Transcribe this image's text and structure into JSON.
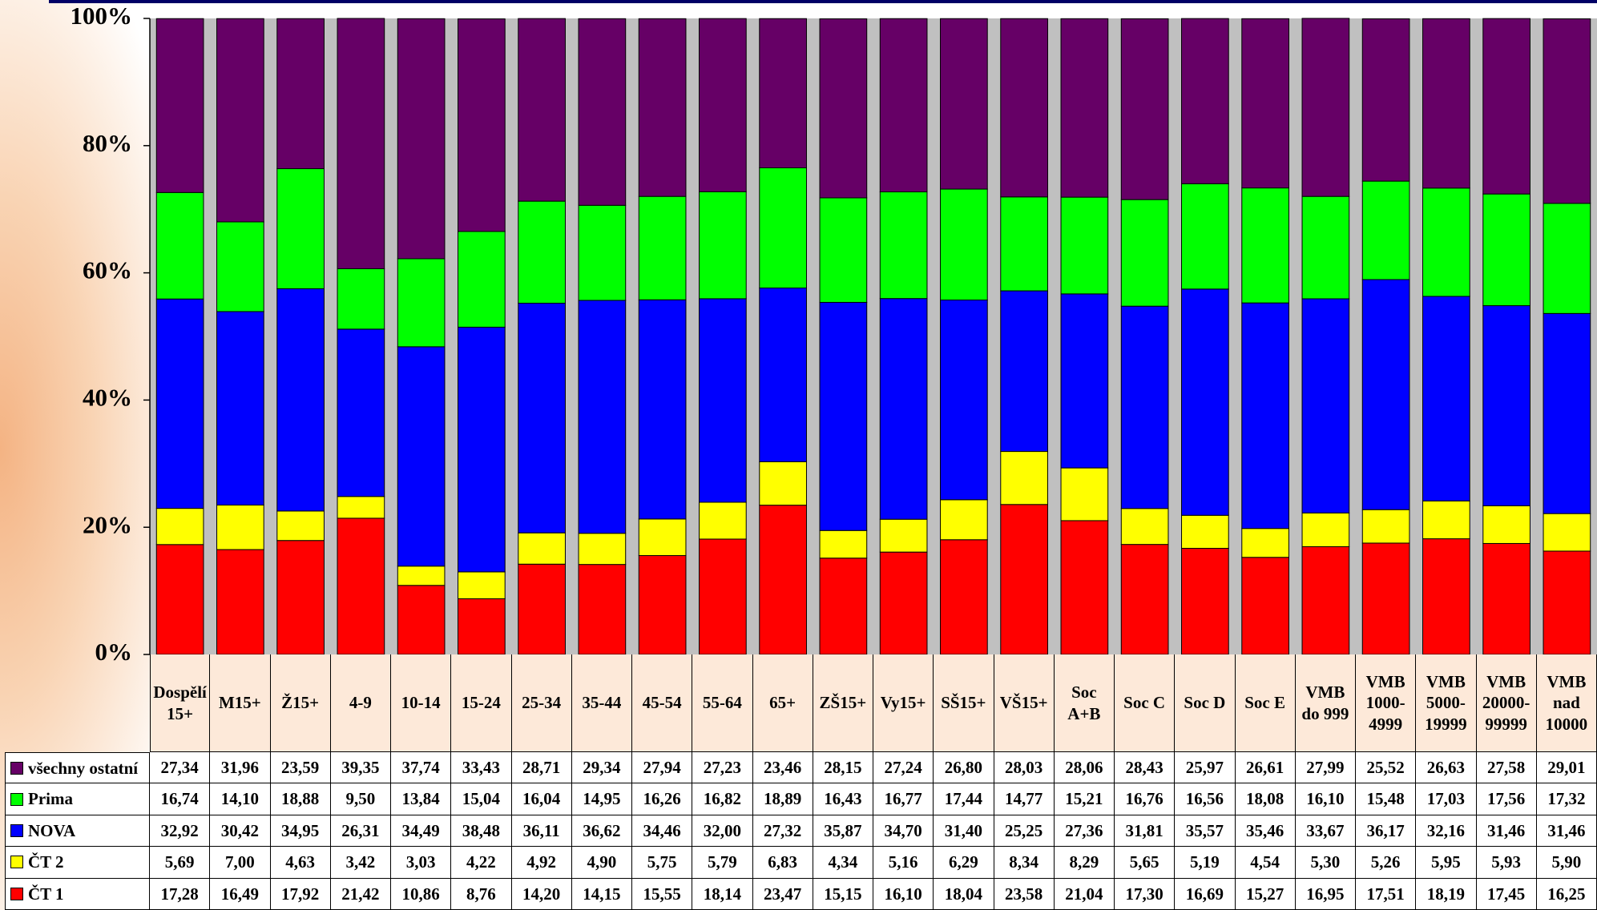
{
  "chart_data": {
    "type": "stacked-bar",
    "categories": [
      "Dospělí 15+",
      "M15+",
      "Ž15+",
      "4-9",
      "10-14",
      "15-24",
      "25-34",
      "35-44",
      "45-54",
      "55-64",
      "65+",
      "ZŠ15+",
      "Vy15+",
      "SŠ15+",
      "VŠ15+",
      "Soc A+B",
      "Soc C",
      "Soc D",
      "Soc E",
      "VMB do 999",
      "VMB 1000-4999",
      "VMB 5000-19999",
      "VMB 20000-99999",
      "VMB nad 10000"
    ],
    "ylim": [
      0,
      100
    ],
    "yticks": [
      {
        "value": 0,
        "label": "0%"
      },
      {
        "value": 20,
        "label": "20%"
      },
      {
        "value": 40,
        "label": "40%"
      },
      {
        "value": 60,
        "label": "60%"
      },
      {
        "value": 80,
        "label": "80%"
      },
      {
        "value": 100,
        "label": "100%"
      }
    ],
    "series": [
      {
        "name": "ČT 1",
        "color": "#ff0000",
        "values": [
          17.28,
          16.49,
          17.92,
          21.42,
          10.86,
          8.76,
          14.2,
          14.15,
          15.55,
          18.14,
          23.47,
          15.15,
          16.1,
          18.04,
          23.58,
          21.04,
          17.3,
          16.69,
          15.27,
          16.95,
          17.51,
          18.19,
          17.45,
          16.25
        ],
        "value_labels": [
          "17,28",
          "16,49",
          "17,92",
          "21,42",
          "10,86",
          "8,76",
          "14,20",
          "14,15",
          "15,55",
          "18,14",
          "23,47",
          "15,15",
          "16,10",
          "18,04",
          "23,58",
          "21,04",
          "17,30",
          "16,69",
          "15,27",
          "16,95",
          "17,51",
          "18,19",
          "17,45",
          "16,25"
        ]
      },
      {
        "name": "ČT 2",
        "color": "#ffff00",
        "values": [
          5.69,
          7.0,
          4.63,
          3.42,
          3.03,
          4.22,
          4.92,
          4.9,
          5.75,
          5.79,
          6.83,
          4.34,
          5.16,
          6.29,
          8.34,
          8.29,
          5.65,
          5.19,
          4.54,
          5.3,
          5.26,
          5.95,
          5.93,
          5.9
        ],
        "value_labels": [
          "5,69",
          "7,00",
          "4,63",
          "3,42",
          "3,03",
          "4,22",
          "4,92",
          "4,90",
          "5,75",
          "5,79",
          "6,83",
          "4,34",
          "5,16",
          "6,29",
          "8,34",
          "8,29",
          "5,65",
          "5,19",
          "4,54",
          "5,30",
          "5,26",
          "5,95",
          "5,93",
          "5,90"
        ]
      },
      {
        "name": "NOVA",
        "color": "#0000ff",
        "values": [
          32.92,
          30.42,
          34.95,
          26.31,
          34.49,
          38.48,
          36.11,
          36.62,
          34.46,
          32.0,
          27.32,
          35.87,
          34.7,
          31.4,
          25.25,
          27.36,
          31.81,
          35.57,
          35.46,
          33.67,
          36.17,
          32.16,
          31.46,
          31.46
        ],
        "value_labels": [
          "32,92",
          "30,42",
          "34,95",
          "26,31",
          "34,49",
          "38,48",
          "36,11",
          "36,62",
          "34,46",
          "32,00",
          "27,32",
          "35,87",
          "34,70",
          "31,40",
          "25,25",
          "27,36",
          "31,81",
          "35,57",
          "35,46",
          "33,67",
          "36,17",
          "32,16",
          "31,46",
          "31,46"
        ]
      },
      {
        "name": "Prima",
        "color": "#00ff00",
        "values": [
          16.74,
          14.1,
          18.88,
          9.5,
          13.84,
          15.04,
          16.04,
          14.95,
          16.26,
          16.82,
          18.89,
          16.43,
          16.77,
          17.44,
          14.77,
          15.21,
          16.76,
          16.56,
          18.08,
          16.1,
          15.48,
          17.03,
          17.56,
          17.32
        ],
        "value_labels": [
          "16,74",
          "14,10",
          "18,88",
          "9,50",
          "13,84",
          "15,04",
          "16,04",
          "14,95",
          "16,26",
          "16,82",
          "18,89",
          "16,43",
          "16,77",
          "17,44",
          "14,77",
          "15,21",
          "16,76",
          "16,56",
          "18,08",
          "16,10",
          "15,48",
          "17,03",
          "17,56",
          "17,32"
        ]
      },
      {
        "name": "všechny ostatní",
        "color": "#660066",
        "values": [
          27.34,
          31.96,
          23.59,
          39.35,
          37.74,
          33.43,
          28.71,
          29.34,
          27.94,
          27.23,
          23.46,
          28.15,
          27.24,
          26.8,
          28.03,
          28.06,
          28.43,
          25.97,
          26.61,
          27.99,
          25.52,
          26.63,
          27.58,
          29.01
        ],
        "value_labels": [
          "27,34",
          "31,96",
          "23,59",
          "39,35",
          "37,74",
          "33,43",
          "28,71",
          "29,34",
          "27,94",
          "27,23",
          "23,46",
          "28,15",
          "27,24",
          "26,80",
          "28,03",
          "28,06",
          "28,43",
          "25,97",
          "26,61",
          "27,99",
          "25,52",
          "26,63",
          "27,58",
          "29,01"
        ]
      }
    ]
  }
}
